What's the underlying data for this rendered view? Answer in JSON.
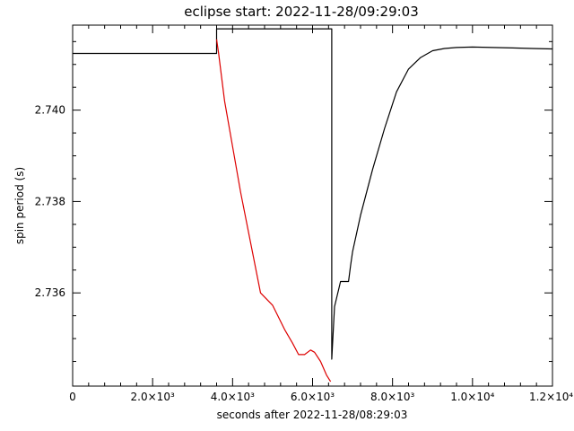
{
  "chart_data": {
    "type": "line",
    "title": "eclipse start: 2022-11-28/09:29:03",
    "xlabel": "seconds after 2022-11-28/08:29:03",
    "ylabel": "spin period (s)",
    "xlim": [
      0,
      12000
    ],
    "ylim": [
      2.73396,
      2.74186
    ],
    "grid": false,
    "x_ticks": [
      {
        "value": 0,
        "label": "0"
      },
      {
        "value": 2000,
        "label": "2.0×10³"
      },
      {
        "value": 4000,
        "label": "4.0×10³"
      },
      {
        "value": 6000,
        "label": "6.0×10³"
      },
      {
        "value": 8000,
        "label": "8.0×10³"
      },
      {
        "value": 10000,
        "label": "1.0×10⁴"
      },
      {
        "value": 12000,
        "label": "1.2×10⁴"
      }
    ],
    "y_ticks": [
      {
        "value": 2.736,
        "label": "2.736"
      },
      {
        "value": 2.738,
        "label": "2.738"
      },
      {
        "value": 2.74,
        "label": "2.740"
      }
    ],
    "series": [
      {
        "name": "",
        "color": "#000000",
        "x": [
          0,
          3600,
          3600,
          6480,
          6480,
          6550,
          6700,
          6900,
          6950,
          7000,
          7200,
          7500,
          7800,
          8100,
          8400,
          8700,
          9000,
          9300,
          9600,
          10000,
          10500,
          11000,
          11500,
          12000
        ],
        "y": [
          2.74124,
          2.74124,
          2.74178,
          2.74178,
          2.73455,
          2.7357,
          2.73625,
          2.73625,
          2.7366,
          2.7369,
          2.7377,
          2.7387,
          2.7396,
          2.7404,
          2.7409,
          2.74115,
          2.7413,
          2.74135,
          2.74137,
          2.74138,
          2.74137,
          2.74136,
          2.74135,
          2.74134
        ]
      },
      {
        "name": "",
        "color": "#dd0000",
        "x": [
          3600,
          3650,
          3800,
          4200,
          4700,
          5000,
          5300,
          5500,
          5650,
          5800,
          5950,
          6050,
          6200,
          6350,
          6450
        ],
        "y": [
          2.74155,
          2.74125,
          2.7402,
          2.7382,
          2.736,
          2.73573,
          2.7352,
          2.7349,
          2.73465,
          2.73465,
          2.73475,
          2.7347,
          2.7345,
          2.7342,
          2.73406
        ]
      }
    ]
  }
}
